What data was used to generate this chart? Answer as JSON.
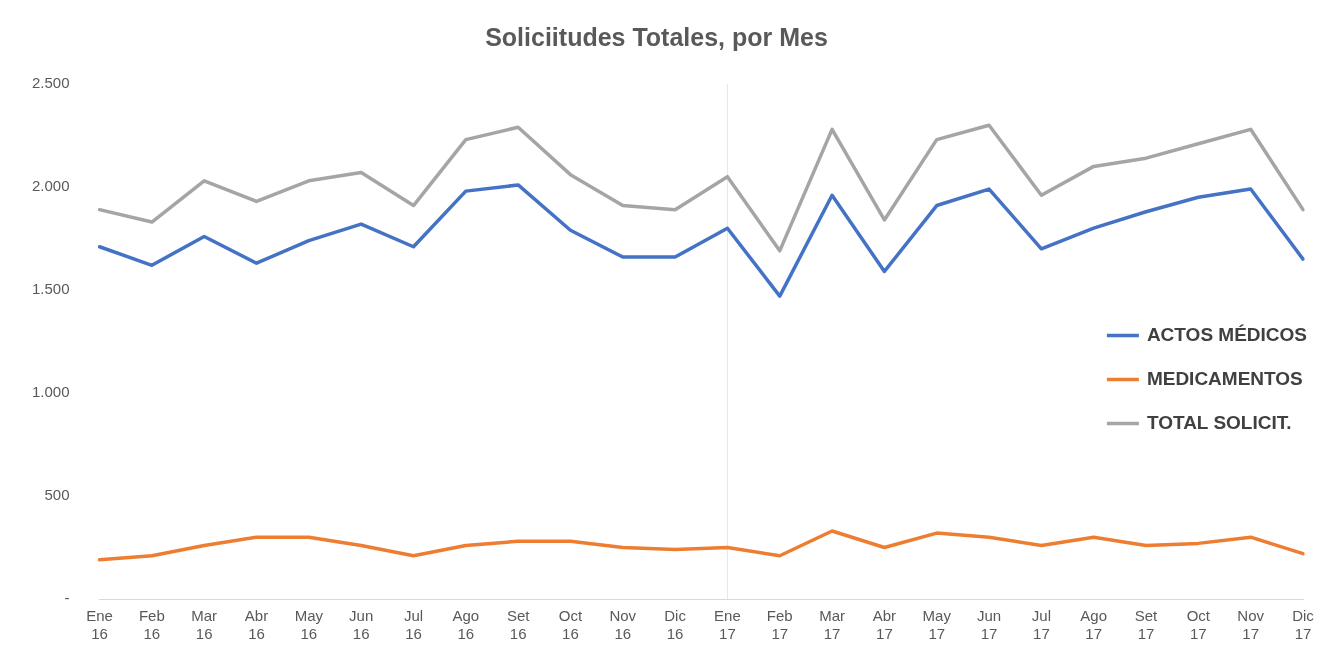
{
  "chart_data": {
    "type": "line",
    "title": "Soliciitudes Totales, por Mes",
    "categories": [
      "Ene 16",
      "Feb 16",
      "Mar 16",
      "Abr 16",
      "May 16",
      "Jun 16",
      "Jul 16",
      "Ago 16",
      "Set 16",
      "Oct 16",
      "Nov 16",
      "Dic 16",
      "Ene 17",
      "Feb 17",
      "Mar 17",
      "Abr 17",
      "May 17",
      "Jun 17",
      "Jul 17",
      "Ago 17",
      "Set 17",
      "Oct 17",
      "Nov 17",
      "Dic 17"
    ],
    "series": [
      {
        "name": "ACTOS MÉDICOS",
        "color": "#4472c4",
        "values": [
          1710,
          1620,
          1760,
          1630,
          1740,
          1820,
          1710,
          1980,
          2010,
          1790,
          1660,
          1660,
          1800,
          1470,
          1960,
          1590,
          1910,
          1990,
          1700,
          1800,
          1880,
          1950,
          1990,
          1650
        ]
      },
      {
        "name": "MEDICAMENTOS",
        "color": "#ed7d31",
        "values": [
          190,
          210,
          260,
          300,
          300,
          260,
          210,
          260,
          280,
          280,
          250,
          240,
          250,
          210,
          330,
          250,
          320,
          300,
          260,
          300,
          260,
          270,
          300,
          220
        ]
      },
      {
        "name": "TOTAL SOLICIT.",
        "color": "#a5a5a5",
        "values": [
          1890,
          1830,
          2030,
          1930,
          2030,
          2070,
          1910,
          2230,
          2290,
          2060,
          1910,
          1890,
          2050,
          1690,
          2280,
          1840,
          2230,
          2300,
          1960,
          2100,
          2140,
          2210,
          2280,
          1890
        ]
      }
    ],
    "ylim": [
      0,
      2500
    ],
    "yticks": [
      {
        "value": 0,
        "label": "-"
      },
      500,
      {
        "value": 1000,
        "label": "1.000"
      },
      {
        "value": 1500,
        "label": "1.500"
      },
      {
        "value": 2000,
        "label": "2.000"
      },
      {
        "value": 2500,
        "label": "2.500"
      }
    ],
    "ref_lines": [
      {
        "axis": "x",
        "value": "Ene 17",
        "color": "#e7e7e7"
      }
    ],
    "grid": false,
    "legend": "right",
    "marker": "none",
    "line_style": "solid"
  }
}
